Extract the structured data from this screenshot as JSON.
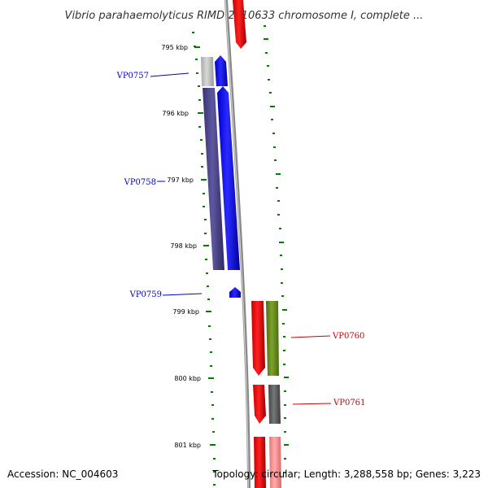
{
  "title": "Vibrio parahaemolyticus RIMD 2210633 chromosome I, complete ...",
  "footer": {
    "accession": "Accession: NC_004603",
    "topology": "Topology: circular; Length: 3,288,558 bp; Genes: 3,223"
  },
  "ruler": {
    "labels": [
      "795 kbp",
      "796 kbp",
      "797 kbp",
      "798 kbp",
      "799 kbp",
      "800 kbp",
      "801 kbp"
    ]
  },
  "genes": [
    {
      "name": "VP0757",
      "strand": "reverse",
      "color": "#0000cc"
    },
    {
      "name": "VP0758",
      "strand": "reverse",
      "color": "#0000cc"
    },
    {
      "name": "VP0759",
      "strand": "reverse",
      "color": "#0000cc"
    },
    {
      "name": "VP0760",
      "strand": "forward",
      "color": "#cc0000"
    },
    {
      "name": "VP0761",
      "strand": "forward",
      "color": "#cc0000"
    }
  ],
  "colors": {
    "reverse_cds": "#0000ff",
    "forward_cds": "#ff0000",
    "tick": "#008000",
    "backbone": "#888888",
    "rev_feature": "#4a4488",
    "fwd_feature_green": "#6b8e23",
    "fwd_feature_grey": "#666666"
  }
}
